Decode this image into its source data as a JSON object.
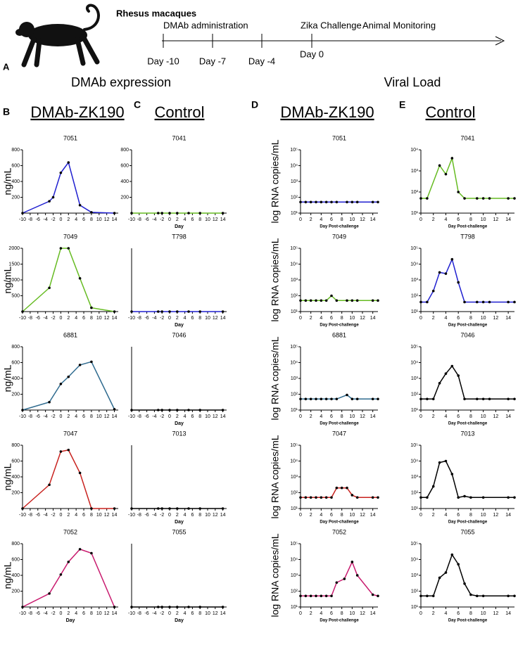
{
  "panel_a": {
    "letter": "A",
    "subject": "Rhesus macaques",
    "events": [
      "DMAb administration",
      "Zika Challenge",
      "Animal Monitoring"
    ],
    "days": [
      "Day -10",
      "Day -7",
      "Day -4",
      "Day 0"
    ]
  },
  "section_titles": [
    "DMAb expression",
    "Viral Load"
  ],
  "column_headers": [
    {
      "letter": "B",
      "label": "DMAb-ZK190"
    },
    {
      "letter": "C",
      "label": "Control"
    },
    {
      "letter": "D",
      "label": "DMAb-ZK190"
    },
    {
      "letter": "E",
      "label": "Control"
    }
  ],
  "chart_data": [
    {
      "type": "line",
      "title": "7051",
      "x": [
        -10,
        -3,
        -2,
        0,
        2,
        5,
        8,
        14
      ],
      "values": [
        0,
        150,
        200,
        510,
        640,
        100,
        10,
        0
      ],
      "color": "#2020d0",
      "xlim": [
        -10,
        15
      ],
      "ylim": [
        0,
        800
      ],
      "xticks": [
        -10,
        -8,
        -6,
        -4,
        -2,
        0,
        2,
        4,
        6,
        8,
        10,
        12,
        14
      ],
      "yticks": [
        200,
        400,
        600,
        800
      ],
      "y_label": "ng/mL"
    },
    {
      "type": "line",
      "title": "7049",
      "x": [
        -10,
        -3,
        0,
        2,
        5,
        8,
        14
      ],
      "values": [
        0,
        750,
        2000,
        2000,
        1050,
        120,
        0
      ],
      "color": "#66bb22",
      "xlim": [
        -10,
        15
      ],
      "ylim": [
        0,
        2000
      ],
      "xticks": [
        -10,
        -8,
        -6,
        -4,
        -2,
        0,
        2,
        4,
        6,
        8,
        10,
        12,
        14
      ],
      "yticks": [
        500,
        1000,
        1500,
        2000
      ],
      "y_label": "ng/mL"
    },
    {
      "type": "line",
      "title": "6881",
      "x": [
        -10,
        -3,
        0,
        2,
        5,
        8,
        14
      ],
      "values": [
        0,
        100,
        330,
        420,
        570,
        610,
        10
      ],
      "color": "#2f6b8f",
      "xlim": [
        -10,
        15
      ],
      "ylim": [
        0,
        800
      ],
      "xticks": [
        -10,
        -8,
        -6,
        -4,
        -2,
        0,
        2,
        4,
        6,
        8,
        10,
        12,
        14
      ],
      "yticks": [
        200,
        400,
        600,
        800
      ],
      "y_label": "ng/mL"
    },
    {
      "type": "line",
      "title": "7047",
      "x": [
        -10,
        -3,
        0,
        2,
        5,
        8,
        14
      ],
      "values": [
        0,
        300,
        720,
        740,
        450,
        0,
        0
      ],
      "color": "#c8221e",
      "xlim": [
        -10,
        15
      ],
      "ylim": [
        0,
        800
      ],
      "xticks": [
        -10,
        -8,
        -6,
        -4,
        -2,
        0,
        2,
        4,
        6,
        8,
        10,
        12,
        14
      ],
      "yticks": [
        200,
        400,
        600,
        800
      ],
      "y_label": "ng/mL"
    },
    {
      "type": "line",
      "title": "7052",
      "x": [
        -10,
        -3,
        0,
        2,
        5,
        8,
        14
      ],
      "values": [
        0,
        170,
        410,
        570,
        730,
        680,
        0
      ],
      "color": "#c81a6e",
      "xlim": [
        -10,
        15
      ],
      "ylim": [
        0,
        800
      ],
      "xticks": [
        -10,
        -8,
        -6,
        -4,
        -2,
        0,
        2,
        4,
        6,
        8,
        10,
        12,
        14
      ],
      "yticks": [
        200,
        400,
        600,
        800
      ],
      "y_label": "ng/mL",
      "x_label": "Day"
    },
    {
      "type": "line",
      "title": "7041",
      "x": [
        -10,
        -3,
        -2,
        0,
        2,
        5,
        8,
        14
      ],
      "values": [
        0,
        0,
        0,
        0,
        0,
        0,
        0,
        0
      ],
      "color": "#66bb22",
      "xlim": [
        -10,
        15
      ],
      "ylim": [
        0,
        800
      ],
      "xticks": [
        -10,
        -8,
        -6,
        -4,
        -2,
        0,
        2,
        4,
        6,
        8,
        10,
        12,
        14
      ],
      "yticks": [
        200,
        400,
        600,
        800
      ],
      "x_label": "Day"
    },
    {
      "type": "line",
      "title": "T798",
      "x": [
        -10,
        -3,
        -2,
        0,
        2,
        5,
        8,
        14
      ],
      "values": [
        0,
        0,
        0,
        0,
        0,
        0,
        0,
        0
      ],
      "color": "#2020d0",
      "xlim": [
        -10,
        15
      ],
      "ylim": [
        0,
        800
      ],
      "xticks": [
        -10,
        -8,
        -6,
        -4,
        -2,
        0,
        2,
        4,
        6,
        8,
        10,
        12,
        14
      ],
      "yticks": [],
      "x_label": "Day"
    },
    {
      "type": "line",
      "title": "7046",
      "x": [
        -10,
        -3,
        -2,
        0,
        2,
        5,
        8,
        14
      ],
      "values": [
        0,
        0,
        0,
        0,
        0,
        0,
        0,
        0
      ],
      "color": "#000000",
      "xlim": [
        -10,
        15
      ],
      "ylim": [
        0,
        800
      ],
      "xticks": [
        -10,
        -8,
        -6,
        -4,
        -2,
        0,
        2,
        4,
        6,
        8,
        10,
        12,
        14
      ],
      "yticks": [],
      "x_label": "Day"
    },
    {
      "type": "line",
      "title": "7013",
      "x": [
        -10,
        -3,
        -2,
        0,
        2,
        5,
        8,
        14
      ],
      "values": [
        0,
        0,
        0,
        0,
        0,
        0,
        0,
        0
      ],
      "color": "#000000",
      "xlim": [
        -10,
        15
      ],
      "ylim": [
        0,
        800
      ],
      "xticks": [
        -10,
        -8,
        -6,
        -4,
        -2,
        0,
        2,
        4,
        6,
        8,
        10,
        12,
        14
      ],
      "yticks": [],
      "x_label": "Day"
    },
    {
      "type": "line",
      "title": "7055",
      "x": [
        -10,
        -3,
        -2,
        0,
        2,
        5,
        8,
        14
      ],
      "values": [
        0,
        0,
        0,
        0,
        0,
        0,
        0,
        0
      ],
      "color": "#000000",
      "xlim": [
        -10,
        15
      ],
      "ylim": [
        0,
        800
      ],
      "xticks": [
        -10,
        -8,
        -6,
        -4,
        -2,
        0,
        2,
        4,
        6,
        8,
        10,
        12,
        14
      ],
      "yticks": [],
      "x_label": "Day"
    },
    {
      "type": "line",
      "title": "7051",
      "x": [
        0,
        1,
        2,
        3,
        4,
        5,
        6,
        7,
        9,
        10,
        11,
        14,
        15
      ],
      "values": [
        50,
        50,
        50,
        50,
        50,
        50,
        50,
        50,
        50,
        50,
        50,
        50,
        50
      ],
      "color": "#2020d0",
      "xlim": [
        0,
        15
      ],
      "ylim": [
        10,
        100000
      ],
      "log_y": true,
      "xticks": [
        0,
        2,
        4,
        6,
        8,
        10,
        12,
        14
      ],
      "yticks": [
        {
          "value": 10,
          "label": "10¹"
        },
        {
          "value": 100,
          "label": "10²"
        },
        {
          "value": 1000,
          "label": "10³"
        },
        {
          "value": 10000,
          "label": "10⁴"
        },
        {
          "value": 100000,
          "label": "10⁵"
        }
      ],
      "y_label": "log  RNA copies/mL",
      "x_label": "Day Post-challenge"
    },
    {
      "type": "line",
      "title": "7049",
      "x": [
        0,
        1,
        2,
        3,
        4,
        5,
        6,
        7,
        9,
        10,
        11,
        14,
        15
      ],
      "values": [
        50,
        50,
        50,
        50,
        50,
        50,
        100,
        50,
        50,
        50,
        50,
        50,
        50
      ],
      "color": "#66bb22",
      "xlim": [
        0,
        15
      ],
      "ylim": [
        10,
        100000
      ],
      "log_y": true,
      "xticks": [
        0,
        2,
        4,
        6,
        8,
        10,
        12,
        14
      ],
      "yticks": [
        {
          "value": 10,
          "label": "10¹"
        },
        {
          "value": 100,
          "label": "10²"
        },
        {
          "value": 1000,
          "label": "10³"
        },
        {
          "value": 10000,
          "label": "10⁴"
        },
        {
          "value": 100000,
          "label": "10⁵"
        }
      ],
      "y_label": "log  RNA copies/mL",
      "x_label": "Day Post-challenge"
    },
    {
      "type": "line",
      "title": "6881",
      "x": [
        0,
        1,
        2,
        3,
        4,
        5,
        6,
        7,
        9,
        10,
        11,
        14,
        15
      ],
      "values": [
        50,
        50,
        50,
        50,
        50,
        50,
        50,
        50,
        90,
        50,
        50,
        50,
        50
      ],
      "color": "#2f6b8f",
      "xlim": [
        0,
        15
      ],
      "ylim": [
        10,
        100000
      ],
      "log_y": true,
      "xticks": [
        0,
        2,
        4,
        6,
        8,
        10,
        12,
        14
      ],
      "yticks": [
        {
          "value": 10,
          "label": "10¹"
        },
        {
          "value": 100,
          "label": "10²"
        },
        {
          "value": 1000,
          "label": "10³"
        },
        {
          "value": 10000,
          "label": "10⁴"
        },
        {
          "value": 100000,
          "label": "10⁵"
        }
      ],
      "y_label": "log  RNA copies/mL",
      "x_label": "Day Post-challenge"
    },
    {
      "type": "line",
      "title": "7047",
      "x": [
        0,
        1,
        2,
        3,
        4,
        5,
        6,
        7,
        8,
        9,
        10,
        11,
        14,
        15
      ],
      "values": [
        50,
        50,
        50,
        50,
        50,
        50,
        50,
        200,
        200,
        200,
        70,
        50,
        50,
        50
      ],
      "color": "#c8221e",
      "xlim": [
        0,
        15
      ],
      "ylim": [
        10,
        100000
      ],
      "log_y": true,
      "xticks": [
        0,
        2,
        4,
        6,
        8,
        10,
        12,
        14
      ],
      "yticks": [
        {
          "value": 10,
          "label": "10¹"
        },
        {
          "value": 100,
          "label": "10²"
        },
        {
          "value": 1000,
          "label": "10³"
        },
        {
          "value": 10000,
          "label": "10⁴"
        },
        {
          "value": 100000,
          "label": "10⁵"
        }
      ],
      "y_label": "log  RNA copies/mL",
      "x_label": "Day Post-challenge"
    },
    {
      "type": "line",
      "title": "7052",
      "x": [
        0,
        1,
        2,
        3,
        4,
        5,
        6,
        7,
        8.5,
        10,
        11,
        14,
        15
      ],
      "values": [
        50,
        50,
        50,
        50,
        50,
        50,
        50,
        350,
        600,
        7000,
        1000,
        60,
        50
      ],
      "color": "#c81a6e",
      "xlim": [
        0,
        15
      ],
      "ylim": [
        10,
        100000
      ],
      "log_y": true,
      "xticks": [
        0,
        2,
        4,
        6,
        8,
        10,
        12,
        14
      ],
      "yticks": [
        {
          "value": 10,
          "label": "10¹"
        },
        {
          "value": 100,
          "label": "10²"
        },
        {
          "value": 1000,
          "label": "10³"
        },
        {
          "value": 10000,
          "label": "10⁴"
        },
        {
          "value": 100000,
          "label": "10⁵"
        }
      ],
      "y_label": "log  RNA copies/mL",
      "x_label": "Day Post-challenge"
    },
    {
      "type": "line",
      "title": "7041",
      "x": [
        0,
        1,
        3,
        4,
        5,
        6,
        7,
        9,
        10,
        11,
        14,
        15
      ],
      "values": [
        50,
        50,
        1800,
        700,
        4000,
        100,
        50,
        50,
        50,
        50,
        50,
        50
      ],
      "color": "#66bb22",
      "xlim": [
        0,
        15
      ],
      "ylim": [
        10,
        10000
      ],
      "log_y": true,
      "xticks": [
        0,
        2,
        4,
        6,
        8,
        10,
        12,
        14
      ],
      "yticks": [
        {
          "value": 10,
          "label": "10¹"
        },
        {
          "value": 100,
          "label": "10²"
        },
        {
          "value": 1000,
          "label": "10³"
        },
        {
          "value": 10000,
          "label": "10⁴"
        }
      ],
      "x_label": "Day Post-challenge"
    },
    {
      "type": "line",
      "title": "T798",
      "x": [
        0,
        1,
        2,
        3,
        4,
        5,
        6,
        7,
        9,
        10,
        11,
        14,
        15
      ],
      "values": [
        40,
        40,
        200,
        3000,
        2500,
        20000,
        700,
        40,
        40,
        40,
        40,
        40,
        40
      ],
      "color": "#2020d0",
      "xlim": [
        0,
        15
      ],
      "ylim": [
        10,
        100000
      ],
      "log_y": true,
      "xticks": [
        0,
        2,
        4,
        6,
        8,
        10,
        12,
        14
      ],
      "yticks": [
        {
          "value": 10,
          "label": "10¹"
        },
        {
          "value": 100,
          "label": "10²"
        },
        {
          "value": 1000,
          "label": "10³"
        },
        {
          "value": 10000,
          "label": "10⁴"
        },
        {
          "value": 100000,
          "label": "10⁵"
        }
      ],
      "x_label": "Day Post-challenge"
    },
    {
      "type": "line",
      "title": "7046",
      "x": [
        0,
        1,
        2,
        3,
        4,
        5,
        6,
        7,
        9,
        10,
        11,
        14,
        15
      ],
      "values": [
        50,
        50,
        50,
        500,
        2000,
        6000,
        1500,
        50,
        50,
        50,
        50,
        50,
        50
      ],
      "color": "#000000",
      "xlim": [
        0,
        15
      ],
      "ylim": [
        10,
        100000
      ],
      "log_y": true,
      "xticks": [
        0,
        2,
        4,
        6,
        8,
        10,
        12,
        14
      ],
      "yticks": [
        {
          "value": 10,
          "label": "10¹"
        },
        {
          "value": 100,
          "label": "10²"
        },
        {
          "value": 1000,
          "label": "10³"
        },
        {
          "value": 10000,
          "label": "10⁴"
        },
        {
          "value": 100000,
          "label": "10⁵"
        }
      ],
      "x_label": "Day Post-challenge"
    },
    {
      "type": "line",
      "title": "7013",
      "x": [
        0,
        1,
        2,
        3,
        4,
        5,
        6,
        7,
        8,
        10,
        14,
        15
      ],
      "values": [
        50,
        50,
        250,
        8000,
        10000,
        1500,
        50,
        60,
        50,
        50,
        50,
        50
      ],
      "color": "#000000",
      "xlim": [
        0,
        15
      ],
      "ylim": [
        10,
        100000
      ],
      "log_y": true,
      "xticks": [
        0,
        2,
        4,
        6,
        8,
        10,
        12,
        14
      ],
      "yticks": [
        {
          "value": 10,
          "label": "10¹"
        },
        {
          "value": 100,
          "label": "10²"
        },
        {
          "value": 1000,
          "label": "10³"
        },
        {
          "value": 10000,
          "label": "10⁴"
        },
        {
          "value": 100000,
          "label": "10⁵"
        }
      ],
      "x_label": "Day Post-challenge"
    },
    {
      "type": "line",
      "title": "7055",
      "x": [
        0,
        1,
        2,
        3,
        4,
        5,
        6,
        7,
        8,
        9,
        10,
        14,
        15
      ],
      "values": [
        50,
        50,
        50,
        700,
        1500,
        20000,
        5000,
        300,
        60,
        50,
        50,
        50,
        50
      ],
      "color": "#000000",
      "xlim": [
        0,
        15
      ],
      "ylim": [
        10,
        100000
      ],
      "log_y": true,
      "xticks": [
        0,
        2,
        4,
        6,
        8,
        10,
        12,
        14
      ],
      "yticks": [
        {
          "value": 10,
          "label": "10¹"
        },
        {
          "value": 100,
          "label": "10²"
        },
        {
          "value": 1000,
          "label": "10³"
        },
        {
          "value": 10000,
          "label": "10⁴"
        },
        {
          "value": 100000,
          "label": "10⁵"
        }
      ],
      "x_label": "Day Post-challenge"
    }
  ]
}
